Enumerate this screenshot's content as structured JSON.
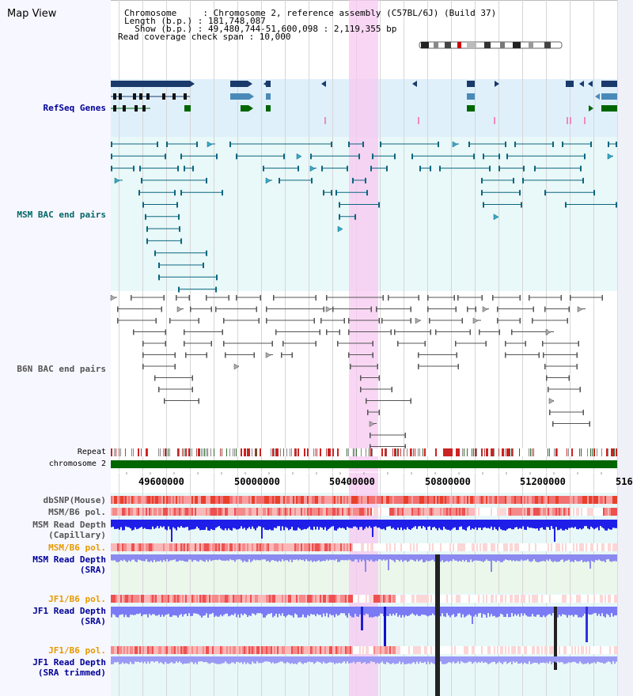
{
  "window": {
    "title": "Map View"
  },
  "info": {
    "chromosome_line": "Chromosome     : Chromosome 2, reference assembly (C57BL/6J) (Build 37)",
    "length_line": "Length (b.p.) : 181,748,087",
    "show_line": "  Show (b.p.) : 49,480,744-51,600,098 : 2,119,355 bp",
    "coverage_line": "Read coverage check span : 10,000"
  },
  "tracks": {
    "refseq": "RefSeq Genes",
    "msm_bac": "MSM BAC end pairs",
    "b6n_bac": "B6N BAC end pairs",
    "repeat": "Repeat",
    "chromosome": "chromosome 2",
    "dbsnp": "dbSNP(Mouse)",
    "msm_b6_pol_1": "MSM/B6 pol.",
    "msm_read_depth_cap": "MSM Read Depth\n(Capillary)",
    "msm_b6_pol_2": "MSM/B6 pol.",
    "msm_read_depth_sra": "MSM Read Depth\n(SRA)",
    "jf1_b6_pol_1": "JF1/B6 pol.",
    "jf1_read_depth_sra": "JF1 Read Depth\n(SRA)",
    "jf1_b6_pol_2": "JF1/B6 pol.",
    "jf1_read_depth_trim": "JF1 Read Depth\n(SRA trimmed)"
  },
  "axis": {
    "ticks": [
      "49600000",
      "50000000",
      "50400000",
      "50800000",
      "51200000",
      "516"
    ]
  },
  "colors": {
    "refseq_bg": "#dff0fb",
    "msm_bg": "#e9f8f8",
    "b6n_bg": "#ffffff",
    "lower_bg": "#e8f8f8",
    "highlight": "#f7c8f0",
    "chrom_green": "#006600",
    "label_blue": "#000099",
    "label_teal": "#006666",
    "label_orange": "#e69a00"
  }
}
